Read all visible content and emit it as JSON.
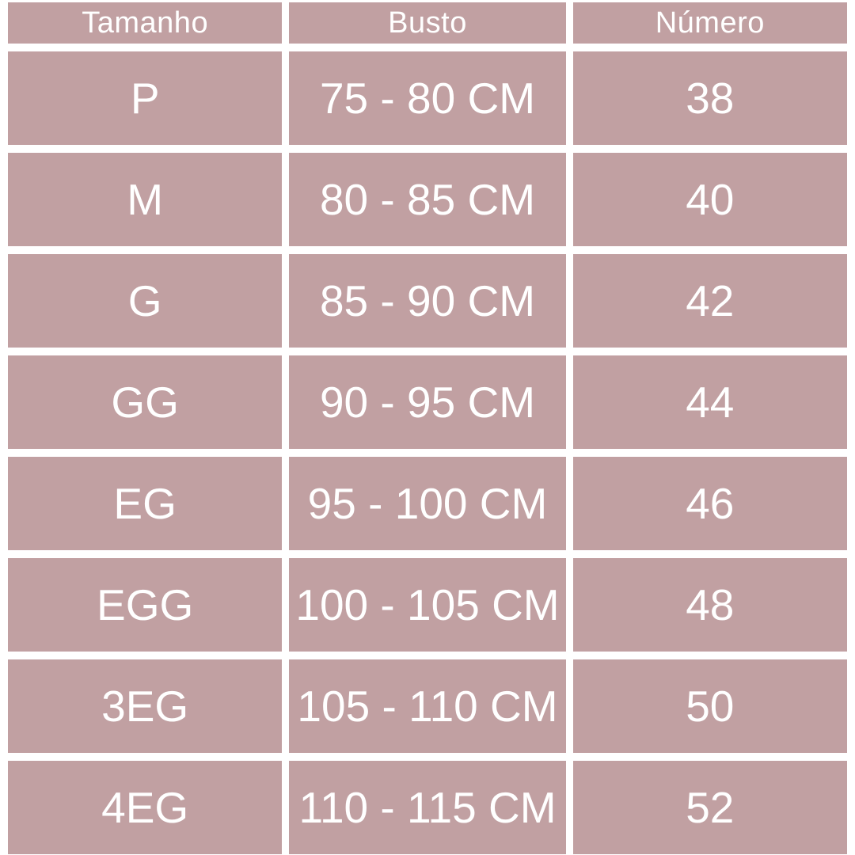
{
  "colors": {
    "cell_background": "#c1a0a2",
    "gutter": "#ffffff",
    "text": "#ffffff"
  },
  "chart_data": {
    "type": "table",
    "title": "",
    "columns": [
      "Tamanho",
      "Busto",
      "Número"
    ],
    "rows": [
      [
        "P",
        "75 - 80 CM",
        "38"
      ],
      [
        "M",
        "80 - 85 CM",
        "40"
      ],
      [
        "G",
        "85 - 90 CM",
        "42"
      ],
      [
        "GG",
        "90 - 95 CM",
        "44"
      ],
      [
        "EG",
        "95 - 100 CM",
        "46"
      ],
      [
        "EGG",
        "100 - 105 CM",
        "48"
      ],
      [
        "3EG",
        "105 - 110 CM",
        "50"
      ],
      [
        "4EG",
        "110 - 115 CM",
        "52"
      ]
    ]
  }
}
